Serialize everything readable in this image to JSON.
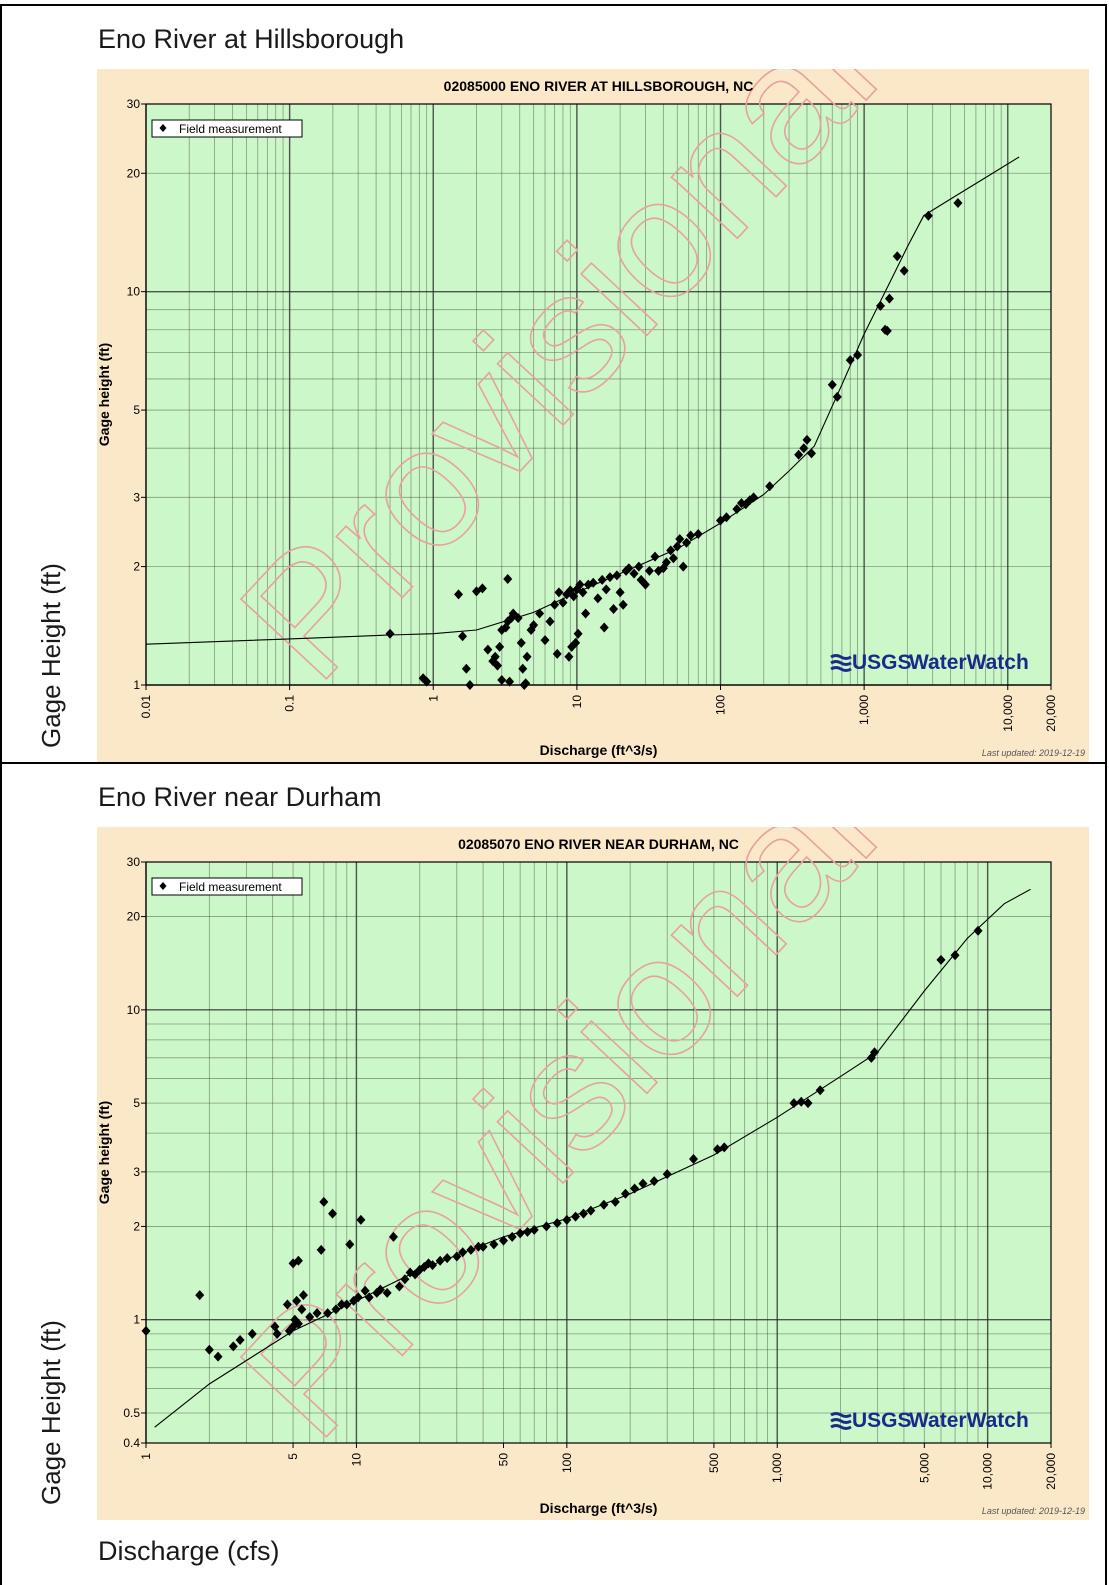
{
  "panels": [
    {
      "panel_title": "Eno River at Hillsborough",
      "side_label": "Gage Height (ft)"
    },
    {
      "panel_title": "Eno River near Durham",
      "side_label": "Gage Height (ft)"
    }
  ],
  "bottom_label": "Discharge (cfs)",
  "colors": {
    "plot_background": "#ccf7c8",
    "frame_background": "#fbe8c8",
    "grid": "#2b2b2b",
    "marker": "#000000",
    "watermark": "#e8a0a0",
    "usgs_blue": "#1b2a8a"
  },
  "chart_data": [
    {
      "type": "scatter",
      "title": "02085000 ENO RIVER AT HILLSBOROUGH, NC",
      "xlabel": "Discharge (ft^3/s)",
      "ylabel": "Gage height (ft)",
      "x_scale": "log",
      "y_scale": "log",
      "xlim": [
        0.01,
        20000
      ],
      "ylim": [
        1,
        30
      ],
      "x_ticks": [
        "0.01",
        "0.1",
        "1",
        "10",
        "100",
        "1,000",
        "10,000",
        "20,000"
      ],
      "x_tick_values": [
        0.01,
        0.1,
        1,
        10,
        100,
        1000,
        10000,
        20000
      ],
      "y_ticks": [
        "1",
        "2",
        "3",
        "5",
        "10",
        "20",
        "30"
      ],
      "y_tick_values": [
        1,
        2,
        3,
        5,
        10,
        20,
        30
      ],
      "grid": true,
      "legend": "Field measurement",
      "legend_position": "top-left",
      "watermark": "Provisional",
      "logo": "USGS WaterWatch",
      "updated": "Last updated: 2019-12-19",
      "series": [
        {
          "name": "Field measurement",
          "points": [
            [
              0.5,
              1.35
            ],
            [
              0.85,
              1.04
            ],
            [
              0.9,
              1.02
            ],
            [
              1.5,
              1.7
            ],
            [
              1.6,
              1.33
            ],
            [
              1.8,
              1.0
            ],
            [
              1.7,
              1.1
            ],
            [
              2.0,
              1.73
            ],
            [
              2.2,
              1.76
            ],
            [
              2.4,
              1.23
            ],
            [
              2.6,
              1.15
            ],
            [
              2.7,
              1.18
            ],
            [
              2.8,
              1.12
            ],
            [
              2.9,
              1.25
            ],
            [
              3.0,
              1.38
            ],
            [
              3.2,
              1.4
            ],
            [
              3.3,
              1.45
            ],
            [
              3.4,
              1.02
            ],
            [
              3.5,
              1.48
            ],
            [
              3.6,
              1.52
            ],
            [
              3.3,
              1.86
            ],
            [
              3.0,
              1.03
            ],
            [
              3.9,
              1.48
            ],
            [
              4.2,
              1.1
            ],
            [
              4.3,
              1.0
            ],
            [
              4.1,
              1.28
            ],
            [
              4.4,
              1.01
            ],
            [
              4.5,
              1.18
            ],
            [
              4.8,
              1.38
            ],
            [
              5.0,
              1.42
            ],
            [
              5.5,
              1.52
            ],
            [
              6.0,
              1.3
            ],
            [
              6.5,
              1.45
            ],
            [
              7.0,
              1.6
            ],
            [
              7.5,
              1.72
            ],
            [
              7.3,
              1.2
            ],
            [
              8.0,
              1.62
            ],
            [
              8.5,
              1.7
            ],
            [
              9.0,
              1.74
            ],
            [
              9.5,
              1.68
            ],
            [
              10.0,
              1.75
            ],
            [
              10.5,
              1.8
            ],
            [
              11.0,
              1.72
            ],
            [
              9.8,
              1.28
            ],
            [
              8.8,
              1.18
            ],
            [
              10.2,
              1.35
            ],
            [
              9.2,
              1.25
            ],
            [
              11.5,
              1.52
            ],
            [
              12.0,
              1.8
            ],
            [
              13.0,
              1.82
            ],
            [
              14.0,
              1.66
            ],
            [
              15.0,
              1.85
            ],
            [
              15.5,
              1.4
            ],
            [
              16.0,
              1.75
            ],
            [
              17.0,
              1.88
            ],
            [
              18.0,
              1.56
            ],
            [
              19.0,
              1.9
            ],
            [
              20.0,
              1.72
            ],
            [
              21.0,
              1.6
            ],
            [
              22.0,
              1.95
            ],
            [
              23.0,
              1.98
            ],
            [
              25.0,
              1.92
            ],
            [
              27.0,
              2.0
            ],
            [
              28.0,
              1.85
            ],
            [
              30.0,
              1.8
            ],
            [
              32.0,
              1.95
            ],
            [
              35.0,
              2.12
            ],
            [
              37.0,
              1.95
            ],
            [
              40.0,
              1.98
            ],
            [
              42.0,
              2.05
            ],
            [
              45.0,
              2.2
            ],
            [
              47.0,
              2.1
            ],
            [
              50.0,
              2.25
            ],
            [
              52.0,
              2.35
            ],
            [
              55.0,
              2.0
            ],
            [
              58.0,
              2.3
            ],
            [
              62.0,
              2.4
            ],
            [
              70.0,
              2.42
            ],
            [
              100.0,
              2.62
            ],
            [
              110.0,
              2.67
            ],
            [
              130.0,
              2.8
            ],
            [
              140.0,
              2.9
            ],
            [
              150.0,
              2.88
            ],
            [
              160.0,
              2.95
            ],
            [
              170.0,
              3.0
            ],
            [
              220.0,
              3.2
            ],
            [
              350.0,
              3.85
            ],
            [
              380.0,
              4.0
            ],
            [
              400.0,
              4.2
            ],
            [
              430.0,
              3.88
            ],
            [
              600.0,
              5.8
            ],
            [
              650.0,
              5.4
            ],
            [
              800.0,
              6.7
            ],
            [
              900.0,
              6.9
            ],
            [
              1300.0,
              9.2
            ],
            [
              1400.0,
              8.0
            ],
            [
              1450.0,
              7.95
            ],
            [
              1500.0,
              9.6
            ],
            [
              1700.0,
              12.3
            ],
            [
              1900.0,
              11.3
            ],
            [
              2800.0,
              15.6
            ],
            [
              4500.0,
              16.8
            ]
          ]
        }
      ],
      "rating_curve": [
        [
          0.01,
          1.27
        ],
        [
          0.1,
          1.31
        ],
        [
          0.5,
          1.34
        ],
        [
          1.0,
          1.35
        ],
        [
          2.0,
          1.38
        ],
        [
          5.0,
          1.53
        ],
        [
          10.0,
          1.72
        ],
        [
          20.0,
          1.92
        ],
        [
          50.0,
          2.22
        ],
        [
          100.0,
          2.58
        ],
        [
          200.0,
          3.05
        ],
        [
          300.0,
          3.5
        ],
        [
          450.0,
          4.05
        ],
        [
          700.0,
          5.8
        ],
        [
          1000.0,
          7.8
        ],
        [
          1500.0,
          10.5
        ],
        [
          2000.0,
          13.0
        ],
        [
          2600.0,
          15.6
        ],
        [
          4000.0,
          17.2
        ],
        [
          7000.0,
          19.5
        ],
        [
          12000.0,
          22.0
        ]
      ]
    },
    {
      "type": "scatter",
      "title": "02085070 ENO RIVER NEAR DURHAM, NC",
      "xlabel": "Discharge (ft^3/s)",
      "ylabel": "Gage height (ft)",
      "x_scale": "log",
      "y_scale": "log",
      "xlim": [
        1,
        20000
      ],
      "ylim": [
        0.4,
        30
      ],
      "x_ticks": [
        "1",
        "5",
        "10",
        "50",
        "100",
        "500",
        "1,000",
        "5,000",
        "10,000",
        "20,000"
      ],
      "x_tick_values": [
        1,
        5,
        10,
        50,
        100,
        500,
        1000,
        5000,
        10000,
        20000
      ],
      "y_ticks": [
        "0.4",
        "0.5",
        "1",
        "2",
        "3",
        "5",
        "10",
        "20",
        "30"
      ],
      "y_tick_values": [
        0.4,
        0.5,
        1,
        2,
        3,
        5,
        10,
        20,
        30
      ],
      "grid": true,
      "legend": "Field measurement",
      "legend_position": "top-left",
      "watermark": "Provisional",
      "logo": "USGS WaterWatch",
      "updated": "Last updated: 2019-12-19",
      "series": [
        {
          "name": "Field measurement",
          "points": [
            [
              1.0,
              0.92
            ],
            [
              1.8,
              1.2
            ],
            [
              2.0,
              0.8
            ],
            [
              2.2,
              0.76
            ],
            [
              2.6,
              0.82
            ],
            [
              2.8,
              0.86
            ],
            [
              3.2,
              0.9
            ],
            [
              4.1,
              0.95
            ],
            [
              4.2,
              0.9
            ],
            [
              4.7,
              1.12
            ],
            [
              4.8,
              0.92
            ],
            [
              5.0,
              0.95
            ],
            [
              5.1,
              1.0
            ],
            [
              5.2,
              1.15
            ],
            [
              5.3,
              0.97
            ],
            [
              5.0,
              1.52
            ],
            [
              5.3,
              1.55
            ],
            [
              5.5,
              1.08
            ],
            [
              5.6,
              1.2
            ],
            [
              6.0,
              1.02
            ],
            [
              6.5,
              1.05
            ],
            [
              6.8,
              1.68
            ],
            [
              7.0,
              2.4
            ],
            [
              7.3,
              1.05
            ],
            [
              7.7,
              2.2
            ],
            [
              8.0,
              1.08
            ],
            [
              8.5,
              1.12
            ],
            [
              9.0,
              1.12
            ],
            [
              9.3,
              1.75
            ],
            [
              9.7,
              1.15
            ],
            [
              10.2,
              1.18
            ],
            [
              10.5,
              2.1
            ],
            [
              11.0,
              1.24
            ],
            [
              11.5,
              1.18
            ],
            [
              12.5,
              1.22
            ],
            [
              13.0,
              1.25
            ],
            [
              14.0,
              1.22
            ],
            [
              15.0,
              1.85
            ],
            [
              16.0,
              1.28
            ],
            [
              17.0,
              1.35
            ],
            [
              18.0,
              1.42
            ],
            [
              19.0,
              1.4
            ],
            [
              20.0,
              1.45
            ],
            [
              21.0,
              1.48
            ],
            [
              22.0,
              1.52
            ],
            [
              23.0,
              1.5
            ],
            [
              25.0,
              1.55
            ],
            [
              27.0,
              1.58
            ],
            [
              30.0,
              1.6
            ],
            [
              32.0,
              1.65
            ],
            [
              35.0,
              1.68
            ],
            [
              38.0,
              1.72
            ],
            [
              40.0,
              1.72
            ],
            [
              45.0,
              1.75
            ],
            [
              50.0,
              1.8
            ],
            [
              55.0,
              1.85
            ],
            [
              60.0,
              1.9
            ],
            [
              65.0,
              1.92
            ],
            [
              70.0,
              1.95
            ],
            [
              80.0,
              2.0
            ],
            [
              90.0,
              2.05
            ],
            [
              100.0,
              2.1
            ],
            [
              110.0,
              2.15
            ],
            [
              120.0,
              2.2
            ],
            [
              130.0,
              2.25
            ],
            [
              150.0,
              2.35
            ],
            [
              170.0,
              2.4
            ],
            [
              190.0,
              2.55
            ],
            [
              210.0,
              2.65
            ],
            [
              230.0,
              2.75
            ],
            [
              260.0,
              2.8
            ],
            [
              300.0,
              2.95
            ],
            [
              400.0,
              3.3
            ],
            [
              520.0,
              3.55
            ],
            [
              560.0,
              3.6
            ],
            [
              1200.0,
              5.0
            ],
            [
              1300.0,
              5.05
            ],
            [
              1400.0,
              5.0
            ],
            [
              1600.0,
              5.5
            ],
            [
              2800.0,
              7.0
            ],
            [
              2900.0,
              7.3
            ],
            [
              6000.0,
              14.5
            ],
            [
              7000.0,
              15.0
            ],
            [
              9000.0,
              18.0
            ]
          ]
        }
      ],
      "rating_curve": [
        [
          1.1,
          0.45
        ],
        [
          2.0,
          0.62
        ],
        [
          5.0,
          0.92
        ],
        [
          10.0,
          1.15
        ],
        [
          20.0,
          1.45
        ],
        [
          50.0,
          1.85
        ],
        [
          100.0,
          2.12
        ],
        [
          200.0,
          2.55
        ],
        [
          500.0,
          3.4
        ],
        [
          1000.0,
          4.5
        ],
        [
          2000.0,
          6.1
        ],
        [
          3000.0,
          7.3
        ],
        [
          5000.0,
          11.5
        ],
        [
          8000.0,
          17.0
        ],
        [
          12000.0,
          22.0
        ],
        [
          16000.0,
          24.5
        ]
      ]
    }
  ]
}
